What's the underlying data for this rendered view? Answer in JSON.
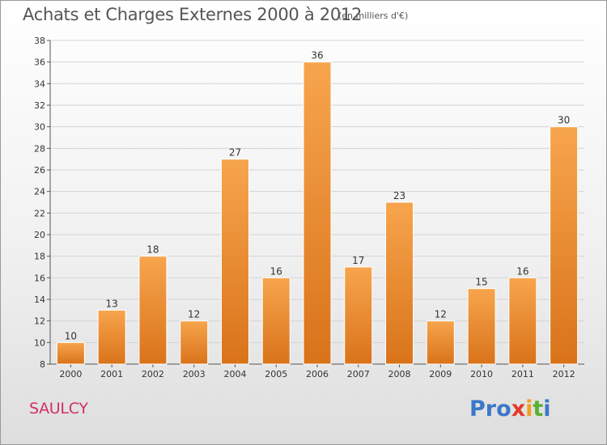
{
  "header": {
    "title": "Achats et Charges Externes 2000 à 2012",
    "subtitle": "(en milliers d'€)"
  },
  "footer": {
    "commune": "SAULCY",
    "logo_letters": [
      "P",
      "r",
      "o",
      "x",
      "i",
      "t",
      "i"
    ]
  },
  "colors": {
    "bar_top": "#f7a54d",
    "bar_bottom": "#d9731a",
    "commune": "#d0306a",
    "logo": [
      "#3a78c9",
      "#3a78c9",
      "#3a78c9",
      "#e23a2a",
      "#f0a020",
      "#5ab030",
      "#3a78c9"
    ]
  },
  "chart_data": {
    "type": "bar",
    "title": "Achats et Charges Externes 2000 à 2012",
    "subtitle": "(en milliers d'€)",
    "categories": [
      "2000",
      "2001",
      "2002",
      "2003",
      "2004",
      "2005",
      "2006",
      "2007",
      "2008",
      "2009",
      "2010",
      "2011",
      "2012"
    ],
    "values": [
      10,
      13,
      18,
      12,
      27,
      16,
      36,
      17,
      23,
      12,
      15,
      16,
      30
    ],
    "ylim": [
      8,
      38
    ],
    "yticks": [
      8,
      10,
      12,
      14,
      16,
      18,
      20,
      22,
      24,
      26,
      28,
      30,
      32,
      34,
      36,
      38
    ],
    "grid": true,
    "legend": "none"
  }
}
